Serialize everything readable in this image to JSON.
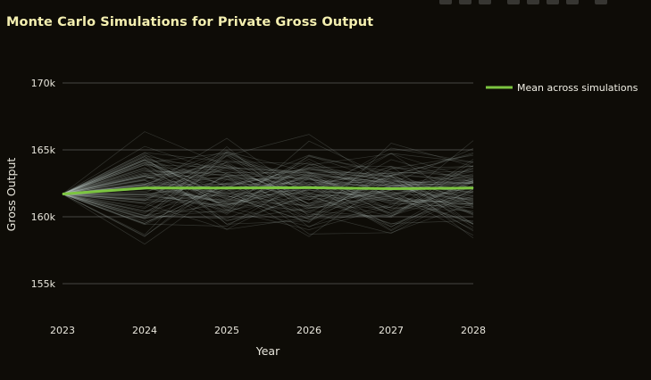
{
  "chart_data": {
    "type": "line",
    "title": "Monte Carlo Simulations for Private Gross Output",
    "xlabel": "Year",
    "ylabel": "Gross Output",
    "x": [
      2023,
      2024,
      2025,
      2026,
      2027,
      2028
    ],
    "x_tick_labels": [
      "2023",
      "2024",
      "2025",
      "2026",
      "2027",
      "2028"
    ],
    "y_ticks": [
      155000,
      160000,
      165000,
      170000
    ],
    "y_tick_labels": [
      "155k",
      "160k",
      "165k",
      "170k"
    ],
    "ylim": [
      153200,
      171400
    ],
    "grid": true,
    "legend_position": "top-right",
    "simulation_count": 100,
    "simulation_start_value": 161700,
    "simulation_spread": 5000,
    "series": [
      {
        "name": "Mean across simulations",
        "color": "#7cc540",
        "values": [
          161700,
          162150,
          162150,
          162170,
          162100,
          162150
        ]
      }
    ],
    "simulation_color": "#b8c4c0"
  },
  "modebar": {
    "icons": [
      "camera-icon",
      "zoom-icon",
      "pan-icon",
      "zoom-in-icon",
      "zoom-out-icon",
      "autoscale-icon",
      "home-icon",
      "fullscreen-icon"
    ]
  }
}
